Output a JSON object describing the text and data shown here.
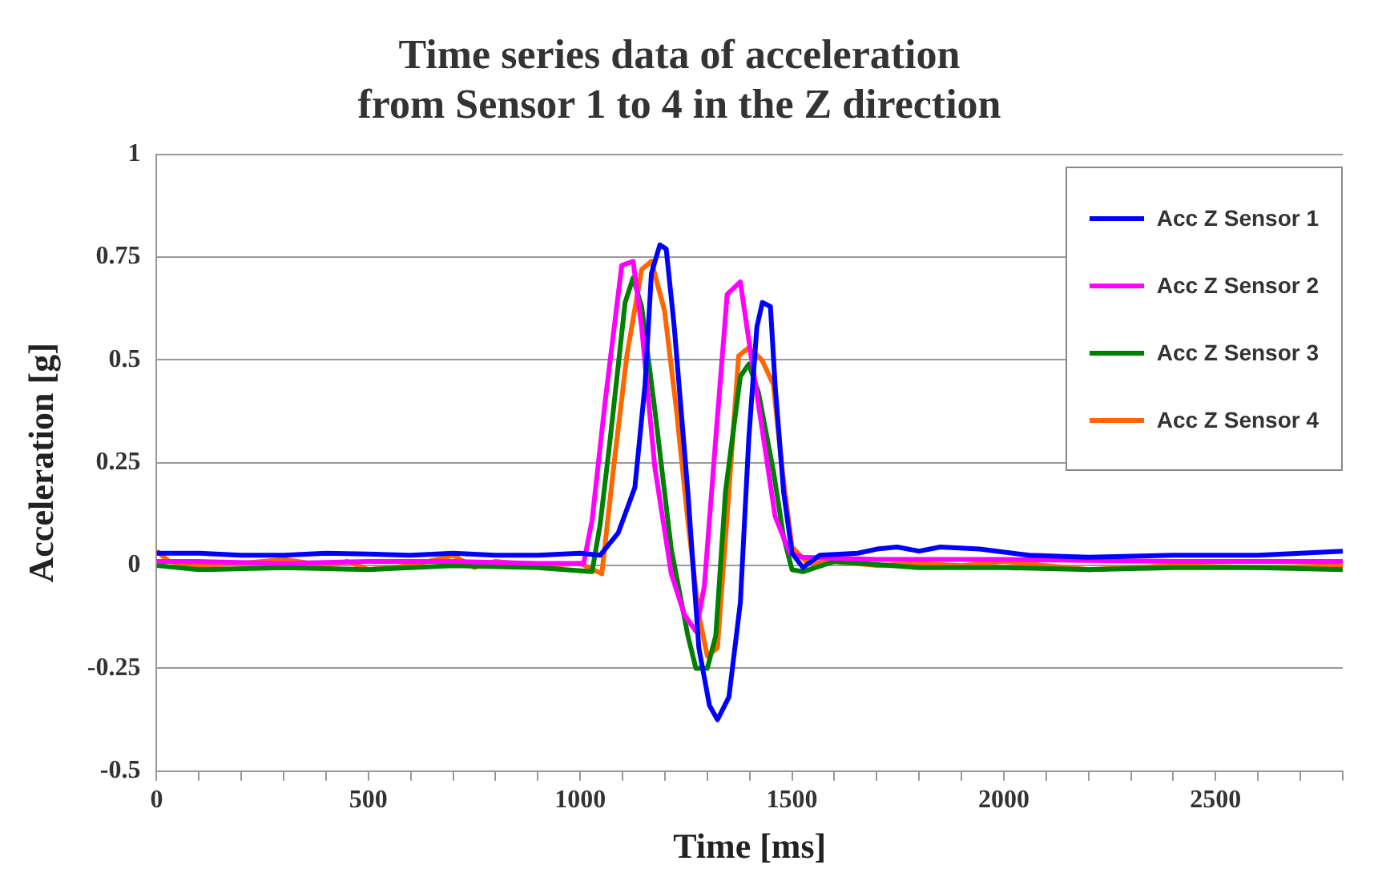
{
  "chart_data": {
    "type": "line",
    "title": "Time series data of acceleration\nfrom Sensor 1 to 4 in the Z direction",
    "xlabel": "Time [ms]",
    "ylabel": "Acceleration [g]",
    "xlim": [
      0,
      2800
    ],
    "xticks": [
      0,
      {
        "value": 100,
        "label": null
      },
      {
        "value": 200,
        "label": null
      },
      {
        "value": 300,
        "label": null
      },
      {
        "value": 400,
        "label": null
      },
      500,
      {
        "value": 600,
        "label": null
      },
      {
        "value": 700,
        "label": null
      },
      {
        "value": 800,
        "label": null
      },
      {
        "value": 900,
        "label": null
      },
      1000,
      {
        "value": 1100,
        "label": null
      },
      {
        "value": 1200,
        "label": null
      },
      {
        "value": 1300,
        "label": null
      },
      {
        "value": 1400,
        "label": null
      },
      1500,
      {
        "value": 1600,
        "label": null
      },
      {
        "value": 1700,
        "label": null
      },
      {
        "value": 1800,
        "label": null
      },
      {
        "value": 1900,
        "label": null
      },
      2000,
      {
        "value": 2100,
        "label": null
      },
      {
        "value": 2200,
        "label": null
      },
      {
        "value": 2300,
        "label": null
      },
      {
        "value": 2400,
        "label": null
      },
      2500,
      {
        "value": 2600,
        "label": null
      },
      {
        "value": 2700,
        "label": null
      },
      {
        "value": 2800,
        "label": null
      }
    ],
    "ylim": [
      -0.5,
      1
    ],
    "yticks": [
      -0.5,
      -0.25,
      0,
      0.25,
      0.5,
      0.75,
      1
    ],
    "grid": "y",
    "legend": "top right",
    "marker": "none",
    "line_style": "solid",
    "series": [
      {
        "name": "Acc Z Sensor 1",
        "color": "#0000ff",
        "x": [
          0,
          100,
          200,
          300,
          400,
          500,
          600,
          700,
          800,
          900,
          1000,
          1047,
          1090,
          1129,
          1153,
          1168,
          1188,
          1203,
          1222,
          1254,
          1280,
          1305,
          1324,
          1351,
          1378,
          1398,
          1417,
          1430,
          1449,
          1460,
          1480,
          1500,
          1526,
          1565,
          1655,
          1700,
          1748,
          1800,
          1850,
          1943,
          2060,
          2200,
          2400,
          2600,
          2700,
          2800
        ],
        "values": [
          0.03,
          0.03,
          0.025,
          0.025,
          0.03,
          0.028,
          0.025,
          0.03,
          0.025,
          0.025,
          0.03,
          0.025,
          0.08,
          0.19,
          0.44,
          0.71,
          0.78,
          0.77,
          0.58,
          0.18,
          -0.2,
          -0.34,
          -0.375,
          -0.32,
          -0.09,
          0.31,
          0.58,
          0.64,
          0.63,
          0.44,
          0.18,
          0.03,
          -0.005,
          0.025,
          0.03,
          0.04,
          0.045,
          0.035,
          0.045,
          0.04,
          0.025,
          0.02,
          0.025,
          0.025,
          0.03,
          0.035
        ]
      },
      {
        "name": "Acc Z Sensor 2",
        "color": "#ff00ff",
        "x": [
          0,
          100,
          300,
          500,
          700,
          900,
          1008,
          1028,
          1059,
          1098,
          1125,
          1145,
          1176,
          1215,
          1246,
          1273,
          1293,
          1320,
          1347,
          1378,
          1402,
          1437,
          1460,
          1495,
          1526,
          1700,
          2000,
          2400,
          2800
        ],
        "values": [
          0.01,
          0.01,
          0.005,
          0.01,
          0.01,
          0.005,
          0.005,
          0.11,
          0.4,
          0.73,
          0.74,
          0.58,
          0.24,
          -0.02,
          -0.12,
          -0.16,
          -0.05,
          0.31,
          0.66,
          0.69,
          0.52,
          0.28,
          0.12,
          0.03,
          0.02,
          0.015,
          0.015,
          0.01,
          0.01
        ]
      },
      {
        "name": "Acc Z Sensor 3",
        "color": "#008000",
        "x": [
          0,
          100,
          300,
          500,
          700,
          900,
          1028,
          1047,
          1071,
          1106,
          1125,
          1145,
          1176,
          1215,
          1254,
          1273,
          1300,
          1320,
          1343,
          1378,
          1398,
          1421,
          1456,
          1480,
          1500,
          1526,
          1600,
          1800,
          2000,
          2200,
          2400,
          2600,
          2800
        ],
        "values": [
          0,
          -0.01,
          -0.005,
          -0.01,
          0,
          -0.005,
          -0.015,
          0.1,
          0.31,
          0.64,
          0.7,
          0.63,
          0.38,
          0.04,
          -0.17,
          -0.25,
          -0.25,
          -0.17,
          0.18,
          0.46,
          0.49,
          0.42,
          0.23,
          0.07,
          -0.01,
          -0.015,
          0.01,
          -0.005,
          -0.005,
          -0.01,
          -0.005,
          -0.005,
          -0.01
        ]
      },
      {
        "name": "Acc Z Sensor 4",
        "color": "#ff6600",
        "x": [
          0,
          30,
          100,
          200,
          300,
          400,
          450,
          500,
          600,
          700,
          750,
          800,
          900,
          1000,
          1051,
          1079,
          1110,
          1145,
          1168,
          1199,
          1227,
          1254,
          1280,
          1300,
          1324,
          1351,
          1374,
          1398,
          1429,
          1456,
          1476,
          1500,
          1538,
          1600,
          1700,
          1800,
          1900,
          2000,
          2200,
          2400,
          2600,
          2800
        ],
        "values": [
          0.035,
          0.01,
          0,
          0.005,
          0.015,
          0,
          0.01,
          -0.01,
          0,
          0.025,
          -0.005,
          0.01,
          0,
          0.005,
          -0.02,
          0.24,
          0.51,
          0.72,
          0.74,
          0.62,
          0.38,
          0.11,
          -0.12,
          -0.22,
          -0.2,
          0.18,
          0.51,
          0.53,
          0.5,
          0.44,
          0.24,
          0.045,
          0.005,
          0.01,
          0,
          0.005,
          0,
          0.01,
          -0.01,
          0,
          -0.005,
          0
        ]
      }
    ]
  }
}
